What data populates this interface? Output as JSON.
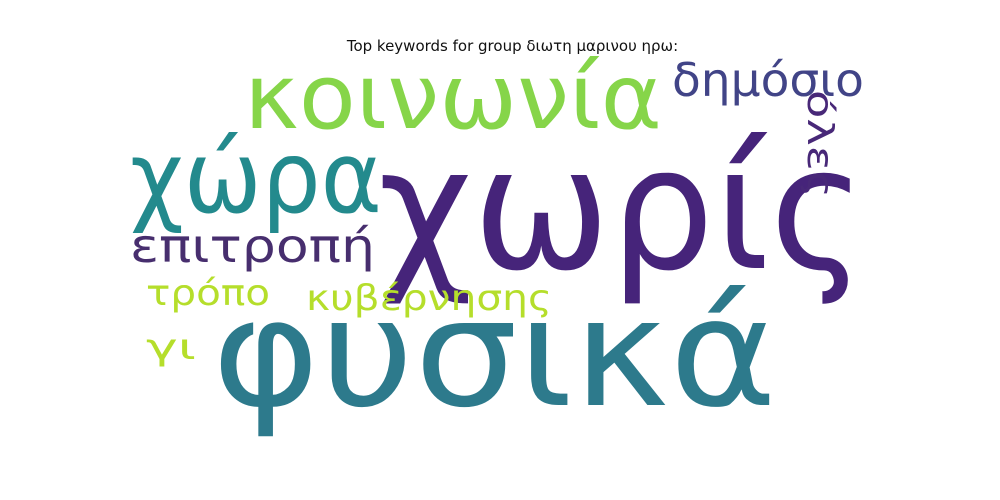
{
  "chart_data": {
    "type": "wordcloud",
    "title": "Top keywords for group διωτη μαρινου ηρω:",
    "words": [
      {
        "text": "χωρίς",
        "weight": 1.0,
        "color": "#46247a"
      },
      {
        "text": "φυσικά",
        "weight": 0.95,
        "color": "#2d7a8c"
      },
      {
        "text": "χώρα",
        "weight": 0.7,
        "color": "#238a8d"
      },
      {
        "text": "κοινωνία",
        "weight": 0.68,
        "color": "#86d549"
      },
      {
        "text": "δημόσιο",
        "weight": 0.45,
        "color": "#414487"
      },
      {
        "text": "επιτροπή",
        "weight": 0.42,
        "color": "#472e6e"
      },
      {
        "text": "κυβέρνησης",
        "weight": 0.35,
        "color": "#b5de2b"
      },
      {
        "text": "τρόπο",
        "weight": 0.33,
        "color": "#b5de2b"
      },
      {
        "text": "όλες",
        "weight": 0.33,
        "color": "#482878"
      },
      {
        "text": "γι",
        "weight": 0.32,
        "color": "#b5de2b"
      }
    ]
  }
}
